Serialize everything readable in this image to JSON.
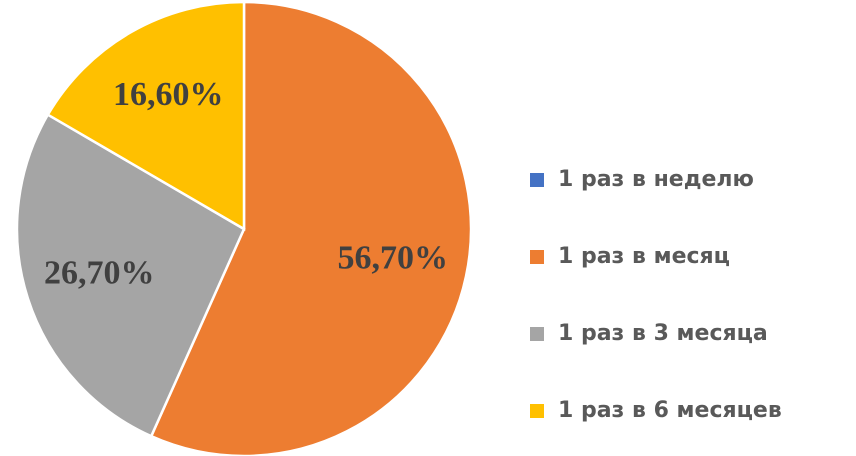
{
  "chart_data": {
    "type": "pie",
    "categories": [
      "1 раз в неделю",
      "1 раз в месяц",
      "1 раз в 3 месяца",
      "1 раз в 6 месяцев"
    ],
    "values": [
      0,
      56.7,
      26.7,
      16.6
    ],
    "value_labels": [
      null,
      "56,70%",
      "26,70%",
      "16,60%"
    ],
    "colors": [
      "#4472c4",
      "#ed7d31",
      "#a5a5a5",
      "#ffc000"
    ],
    "legend": "right"
  }
}
